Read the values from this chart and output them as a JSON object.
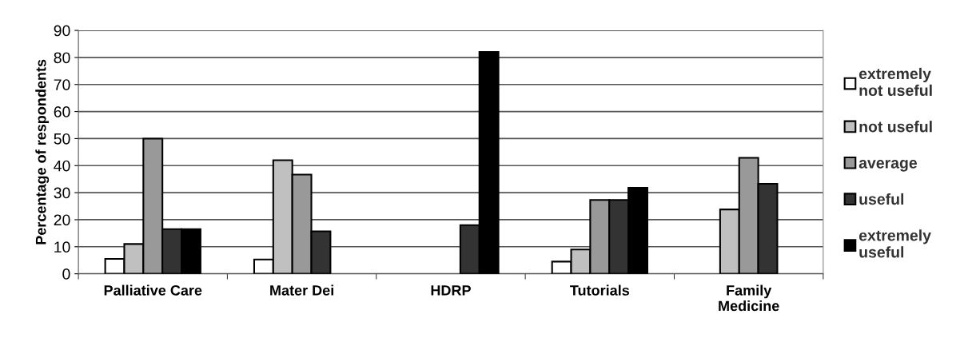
{
  "chart_data": {
    "type": "bar",
    "ylabel": "Percentage of respondents",
    "categories": [
      "Palliative Care",
      "Mater Dei",
      "HDRP",
      "Tutorials",
      "Family\nMedicine"
    ],
    "series": [
      {
        "name": "extremely\nnot useful",
        "color": "#ffffff",
        "values": [
          5.5,
          5.3,
          null,
          4.5,
          null
        ]
      },
      {
        "name": "not useful",
        "color": "#c0c0c0",
        "values": [
          11,
          42,
          null,
          9,
          23.8
        ]
      },
      {
        "name": "average",
        "color": "#999999",
        "values": [
          50,
          36.7,
          null,
          27.3,
          42.9
        ]
      },
      {
        "name": "useful",
        "color": "#333333",
        "values": [
          16.5,
          15.7,
          18,
          27.3,
          33.3
        ]
      },
      {
        "name": "extremely\nuseful",
        "color": "#000000",
        "values": [
          16.5,
          null,
          82,
          31.8,
          null
        ]
      }
    ],
    "ylim": [
      0,
      90
    ],
    "yticks": [
      0,
      10,
      20,
      30,
      40,
      50,
      60,
      70,
      80,
      90
    ],
    "grid": "y",
    "legend": "right"
  }
}
